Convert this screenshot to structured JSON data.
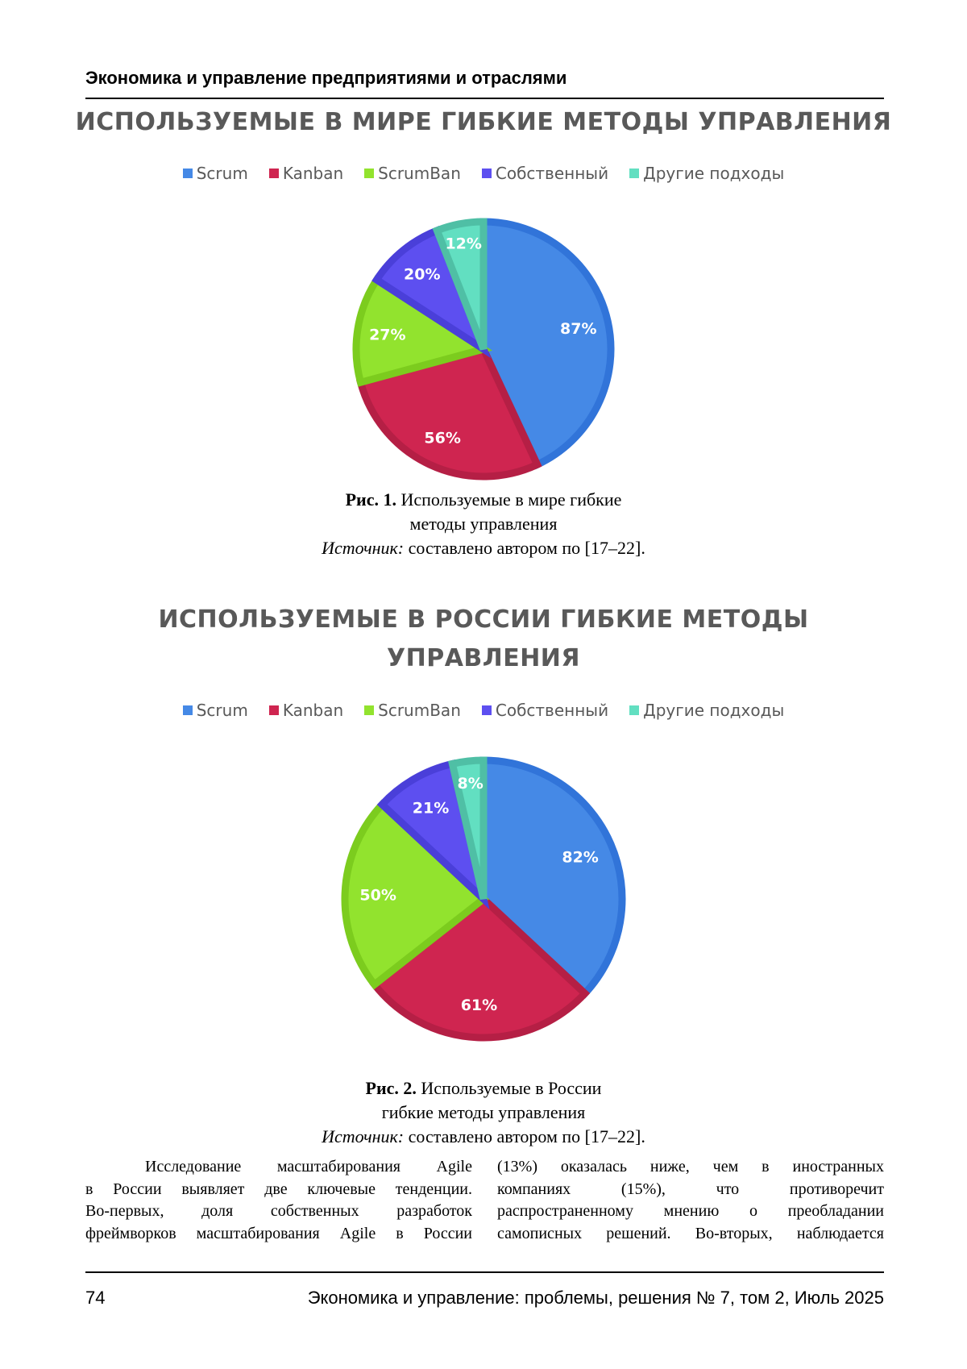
{
  "running_head": "Экономика и управление предприятиями и отраслями",
  "chart_data": [
    {
      "type": "pie",
      "title": "ИСПОЛЬЗУЕМЫЕ В МИРЕ ГИБКИЕ МЕТОДЫ УПРАВЛЕНИЯ",
      "title_lines": [
        "ИСПОЛЬЗУЕМЫЕ В МИРЕ ГИБКИЕ МЕТОДЫ УПРАВЛЕНИЯ"
      ],
      "categories": [
        "Scrum",
        "Kanban",
        "ScrumBan",
        "Собственный",
        "Другие подходы"
      ],
      "values": [
        87,
        56,
        27,
        20,
        12
      ],
      "labels": [
        "87%",
        "56%",
        "27%",
        "20%",
        "12%"
      ],
      "colors": [
        "#4589e6",
        "#cf2550",
        "#92e32e",
        "#5d4ff0",
        "#62dfc1"
      ],
      "stroke_colors": [
        "#3174d9",
        "#b51f45",
        "#7ccc1e",
        "#4a3fd9",
        "#4fbfa5"
      ],
      "legend_position": "top"
    },
    {
      "type": "pie",
      "title": "ИСПОЛЬЗУЕМЫЕ В РОССИИ ГИБКИЕ МЕТОДЫ УПРАВЛЕНИЯ",
      "title_lines": [
        "ИСПОЛЬЗУЕМЫЕ В РОССИИ ГИБКИЕ МЕТОДЫ",
        "УПРАВЛЕНИЯ"
      ],
      "categories": [
        "Scrum",
        "Kanban",
        "ScrumBan",
        "Собственный",
        "Другие подходы"
      ],
      "values": [
        82,
        61,
        50,
        21,
        8
      ],
      "labels": [
        "82%",
        "61%",
        "50%",
        "21%",
        "8%"
      ],
      "colors": [
        "#4589e6",
        "#cf2550",
        "#92e32e",
        "#5d4ff0",
        "#62dfc1"
      ],
      "stroke_colors": [
        "#3174d9",
        "#b51f45",
        "#7ccc1e",
        "#4a3fd9",
        "#4fbfa5"
      ],
      "legend_position": "top"
    }
  ],
  "captions": [
    {
      "fig": "Рис. 1.",
      "line1": " Используемые в мире гибкие",
      "line2": "методы управления",
      "source_label": "Источник:",
      "source_text": " составлено автором по [17–22]."
    },
    {
      "fig": "Рис. 2.",
      "line1": " Используемые в России",
      "line2": "гибкие методы управления",
      "source_label": "Источник:",
      "source_text": " составлено автором по [17–22]."
    }
  ],
  "body": {
    "left": [
      "Исследование масштабирования Agile",
      "в России выявляет две ключевые тенденции.",
      "Во-первых, доля собственных разработок",
      "фреймворков масштабирования Agile в России"
    ],
    "right": [
      "(13%) оказалась ниже, чем в иностранных",
      "компаниях (15%), что противоречит",
      "распространенному мнению о преобладании",
      "самописных решений. Во-вторых, наблюдается"
    ]
  },
  "footer": {
    "page_number": "74",
    "journal": "Экономика и управление: проблемы, решения № 7, том 2, Июль 2025"
  }
}
